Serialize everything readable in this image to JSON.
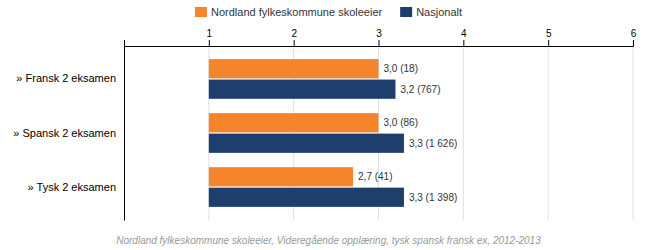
{
  "chart_data": {
    "type": "bar",
    "orientation": "horizontal",
    "categories": [
      "» Fransk 2 eksamen",
      "» Spansk 2 eksamen",
      "» Tysk 2 eksamen"
    ],
    "series": [
      {
        "name": "Nordland fylkeskommune skoleeier",
        "color": "#f4852a",
        "values": [
          3.0,
          3.0,
          2.7
        ],
        "value_labels": [
          "3,0 (18)",
          "3,0 (86)",
          "2,7 (41)"
        ]
      },
      {
        "name": "Nasjonalt",
        "color": "#1e3f6e",
        "values": [
          3.2,
          3.3,
          3.3
        ],
        "value_labels": [
          "3,2 (767)",
          "3,3 (1 626)",
          "3,3 (1 398)"
        ]
      }
    ],
    "xlim": [
      0,
      6
    ],
    "xticks": [
      1,
      2,
      3,
      4,
      5,
      6
    ],
    "grid": true,
    "legend": "top",
    "data_labels": true,
    "footnote": "Nordland fylkeskommune skoleeier, Videregående opplæring, tysk spansk fransk ex, 2012-2013"
  }
}
